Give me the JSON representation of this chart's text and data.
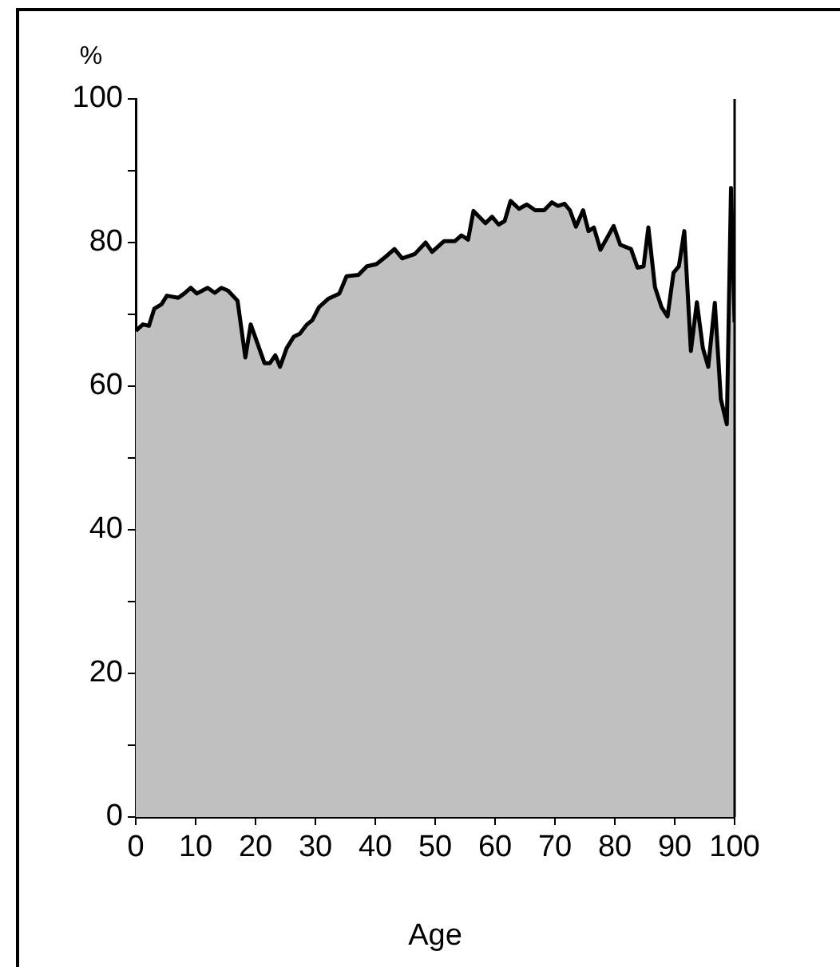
{
  "chart_data": {
    "type": "area",
    "xlabel": "Age",
    "ylabel": "%",
    "x": [
      0,
      1.2,
      2.2,
      3.1,
      4.3,
      5.2,
      7.1,
      8.1,
      9.2,
      10.2,
      12,
      13.2,
      14.3,
      15.4,
      17,
      18.3,
      19.2,
      21.5,
      22.4,
      23.3,
      24.1,
      25.2,
      26.4,
      27.4,
      28.6,
      29.5,
      30.6,
      32.2,
      34,
      35.2,
      37.2,
      38.6,
      40.2,
      41.7,
      43.2,
      44.5,
      46.6,
      48.4,
      49.5,
      51.5,
      53.3,
      54.4,
      55.5,
      56.4,
      58.4,
      59.5,
      60.6,
      61.6,
      62.6,
      64,
      65.3,
      66.7,
      68.2,
      69.5,
      70.5,
      71.6,
      72.5,
      73.5,
      74.7,
      75.6,
      76.5,
      77.6,
      79.8,
      80.9,
      82.7,
      83.8,
      84.8,
      85.6,
      86.7,
      87.8,
      88.8,
      89.8,
      90.7,
      91.6,
      92.7,
      93.7,
      94.7,
      95.6,
      96.7,
      97.7,
      98.7,
      99.4,
      100
    ],
    "series": [
      {
        "color": "#c0c0c0",
        "values": [
          67.7,
          68.6,
          68.4,
          70.8,
          71.4,
          72.6,
          72.3,
          72.9,
          73.7,
          72.9,
          73.7,
          73,
          73.7,
          73.3,
          71.9,
          64,
          68.6,
          63.2,
          63.2,
          64.3,
          62.7,
          65.3,
          66.9,
          67.3,
          68.6,
          69.2,
          71,
          72.2,
          72.9,
          75.3,
          75.5,
          76.7,
          77,
          78,
          79.1,
          77.8,
          78.4,
          80,
          78.7,
          80.2,
          80.2,
          81,
          80.4,
          84.4,
          82.7,
          83.6,
          82.5,
          83,
          85.8,
          84.7,
          85.3,
          84.5,
          84.5,
          85.6,
          85.1,
          85.4,
          84.5,
          82.2,
          84.5,
          81.6,
          82.1,
          79,
          82.3,
          79.7,
          79.1,
          76.5,
          76.7,
          82.1,
          73.8,
          71,
          69.7,
          75.8,
          76.7,
          81.6,
          64.9,
          71.7,
          65.3,
          62.7,
          71.6,
          58.2,
          54.7,
          87.6,
          68.9
        ]
      }
    ],
    "xlim": [
      0,
      100
    ],
    "xticks": [
      0,
      10,
      20,
      30,
      40,
      50,
      60,
      70,
      80,
      90,
      100
    ],
    "ylim": [
      0,
      100
    ],
    "yticks": [
      0,
      {
        "value": 10,
        "label": null
      },
      20,
      {
        "value": 30,
        "label": null
      },
      40,
      {
        "value": 50,
        "label": null
      },
      60,
      {
        "value": 70,
        "label": null
      },
      80,
      {
        "value": 90,
        "label": null
      },
      100
    ],
    "grid": false,
    "legend": false,
    "marker": "none",
    "line_style": "solid"
  }
}
